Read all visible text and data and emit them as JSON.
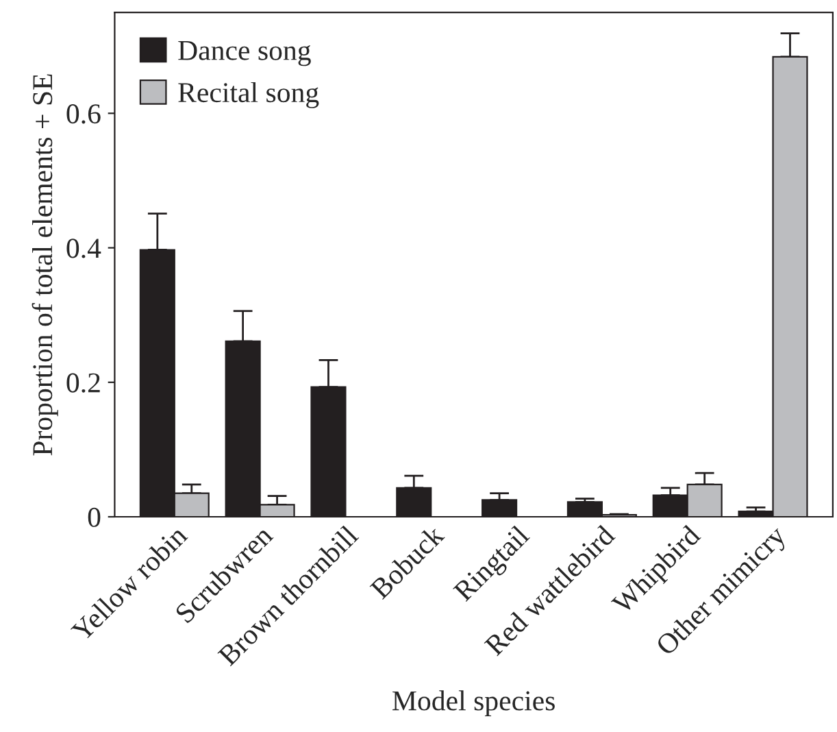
{
  "chart_data": {
    "type": "bar",
    "xlabel": "Model species",
    "ylabel": "Proportion of total elements + SE",
    "categories": [
      "Yellow robin",
      "Scrubwren",
      "Brown thornbill",
      "Bobuck",
      "Ringtail",
      "Red wattlebird",
      "Whipbird",
      "Other mimicry"
    ],
    "series": [
      {
        "name": "Dance song",
        "color": "#231f20",
        "values": [
          0.397,
          0.261,
          0.193,
          0.043,
          0.025,
          0.022,
          0.032,
          0.008
        ],
        "errors": [
          [
            0.397,
            0.451
          ],
          [
            0.261,
            0.306
          ],
          [
            0.193,
            0.233
          ],
          [
            0.043,
            0.061
          ],
          [
            0.025,
            0.035
          ],
          [
            0.022,
            0.027
          ],
          [
            0.032,
            0.043
          ],
          [
            0.008,
            0.014
          ]
        ]
      },
      {
        "name": "Recital song",
        "color": "#bcbdc0",
        "values": [
          0.035,
          0.018,
          null,
          null,
          null,
          0.003,
          0.048,
          0.684
        ],
        "errors": [
          [
            0.035,
            0.048
          ],
          [
            0.018,
            0.031
          ],
          null,
          null,
          null,
          [
            0.003,
            0.004
          ],
          [
            0.048,
            0.065
          ],
          [
            0.684,
            0.719
          ]
        ]
      }
    ],
    "ylim": [
      0,
      0.75
    ],
    "yticks": [
      0,
      0.2,
      0.4,
      0.6
    ],
    "legend": "top left",
    "grid": false
  }
}
